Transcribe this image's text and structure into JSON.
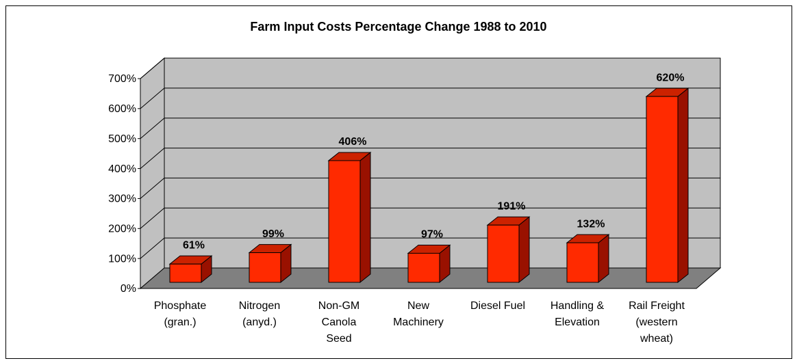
{
  "chart_data": {
    "type": "bar3d",
    "title": "Farm Input Costs Percentage Change 1988 to 2010",
    "categories": [
      [
        "Phosphate",
        "(gran.)"
      ],
      [
        "Nitrogen",
        "(anyd.)"
      ],
      [
        "Non-GM",
        "Canola",
        "Seed"
      ],
      [
        "New",
        "Machinery"
      ],
      [
        "Diesel Fuel"
      ],
      [
        "Handling &",
        "Elevation"
      ],
      [
        "Rail Freight",
        "(western",
        "wheat)"
      ]
    ],
    "values": [
      61,
      99,
      406,
      97,
      191,
      132,
      620
    ],
    "value_labels": [
      "61%",
      "99%",
      "406%",
      "97%",
      "191%",
      "132%",
      "620%"
    ],
    "color": "#ff2a00",
    "ylim": [
      0,
      700
    ],
    "yticks": [
      {
        "value": 0,
        "label": "0%"
      },
      {
        "value": 100,
        "label": "100%"
      },
      {
        "value": 200,
        "label": "200%"
      },
      {
        "value": 300,
        "label": "300%"
      },
      {
        "value": 400,
        "label": "400%"
      },
      {
        "value": 500,
        "label": "500%"
      },
      {
        "value": 600,
        "label": "600%"
      },
      {
        "value": 700,
        "label": "700%"
      }
    ],
    "grid": true
  }
}
